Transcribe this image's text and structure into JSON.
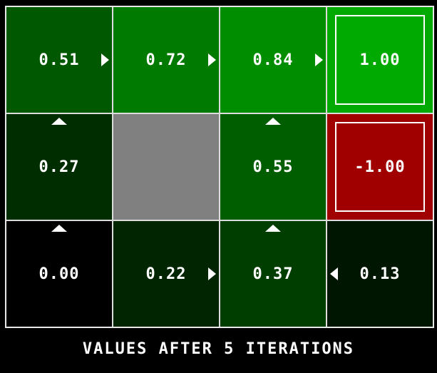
{
  "title": "VALUES AFTER 5 ITERATIONS",
  "colors": {
    "background": "#000000",
    "grid_line": "#e8e8e8",
    "text": "#ffffff",
    "wall": "#808080",
    "exit_positive": "#00aa00",
    "exit_negative": "#a00000"
  },
  "grid": {
    "rows": 3,
    "cols": 4,
    "cells": [
      {
        "name": "cell-r0c0",
        "value": "0.51",
        "bg": "#005800",
        "arrow": "right",
        "type": "value"
      },
      {
        "name": "cell-r0c1",
        "value": "0.72",
        "bg": "#007a00",
        "arrow": "right",
        "type": "value"
      },
      {
        "name": "cell-r0c2",
        "value": "0.84",
        "bg": "#008e00",
        "arrow": "right",
        "type": "value"
      },
      {
        "name": "cell-r0c3",
        "value": "1.00",
        "bg": "#00aa00",
        "arrow": null,
        "type": "exit"
      },
      {
        "name": "cell-r1c0",
        "value": "0.27",
        "bg": "#002d00",
        "arrow": "up",
        "type": "value"
      },
      {
        "name": "wall-cell",
        "value": "",
        "bg": "#808080",
        "arrow": null,
        "type": "wall"
      },
      {
        "name": "cell-r1c2",
        "value": "0.55",
        "bg": "#005e00",
        "arrow": "up",
        "type": "value"
      },
      {
        "name": "cell-r1c3",
        "value": "-1.00",
        "bg": "#a00000",
        "arrow": null,
        "type": "exit"
      },
      {
        "name": "cell-r2c0",
        "value": "0.00",
        "bg": "#000000",
        "arrow": "up",
        "type": "value"
      },
      {
        "name": "cell-r2c1",
        "value": "0.22",
        "bg": "#002500",
        "arrow": "right",
        "type": "value"
      },
      {
        "name": "cell-r2c2",
        "value": "0.37",
        "bg": "#003e00",
        "arrow": "up",
        "type": "value"
      },
      {
        "name": "cell-r2c3",
        "value": "0.13",
        "bg": "#001600",
        "arrow": "left",
        "type": "value"
      }
    ]
  },
  "chart_data": {
    "type": "heatmap",
    "title": "VALUES AFTER 5 ITERATIONS",
    "rows": 3,
    "cols": 4,
    "values": [
      [
        0.51,
        0.72,
        0.84,
        1.0
      ],
      [
        0.27,
        null,
        0.55,
        -1.0
      ],
      [
        0.0,
        0.22,
        0.37,
        0.13
      ]
    ],
    "policy_arrows": [
      [
        "right",
        "right",
        "right",
        "exit"
      ],
      [
        "up",
        "wall",
        "up",
        "exit"
      ],
      [
        "up",
        "right",
        "up",
        "left"
      ]
    ],
    "legend_position": "none",
    "grid": "on"
  }
}
